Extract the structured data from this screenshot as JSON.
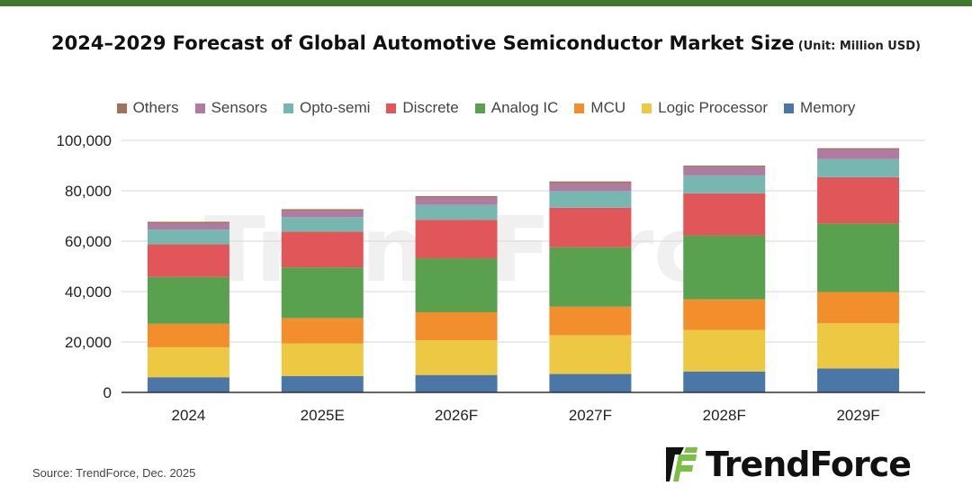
{
  "header": {
    "title": "2024–2029 Forecast of Global Automotive Semiconductor Market Size",
    "unit": "(Unit: Million USD)"
  },
  "footer": {
    "source": "Source: TrendForce, Dec.  2025",
    "logo_text": "TrendForce",
    "watermark_text": "TrendForce"
  },
  "colors": {
    "accent_bar": "#3f7a2c",
    "logo_green": "#7ac143"
  },
  "chart_data": {
    "type": "bar",
    "stacked": true,
    "title": "2024–2029 Forecast of Global Automotive Semiconductor Market Size",
    "categories": [
      "2024",
      "2025E",
      "2026F",
      "2027F",
      "2028F",
      "2029F"
    ],
    "ylim": [
      0,
      100000
    ],
    "yticks": [
      0,
      20000,
      40000,
      60000,
      80000,
      100000
    ],
    "ytick_labels": [
      "0",
      "20,000",
      "40,000",
      "60,000",
      "80,000",
      "100,000"
    ],
    "grid": true,
    "legend_placement": "top",
    "legend_order": [
      "Others",
      "Sensors",
      "Opto-semi",
      "Discrete",
      "Analog IC",
      "MCU",
      "Logic Processor",
      "Memory"
    ],
    "series": [
      {
        "name": "Memory",
        "color": "#4a76a8",
        "values": [
          6000,
          6500,
          6900,
          7300,
          8300,
          9500
        ]
      },
      {
        "name": "Logic Processor",
        "color": "#ecc843",
        "values": [
          11900,
          12900,
          13800,
          15400,
          16500,
          17900
        ]
      },
      {
        "name": "MCU",
        "color": "#f28e2b",
        "values": [
          9300,
          10100,
          11100,
          11300,
          12100,
          12400
        ]
      },
      {
        "name": "Analog IC",
        "color": "#59a14f",
        "values": [
          18600,
          20100,
          21400,
          23600,
          25400,
          27200
        ]
      },
      {
        "name": "Discrete",
        "color": "#e15759",
        "values": [
          13000,
          14200,
          15300,
          15700,
          16700,
          18400
        ]
      },
      {
        "name": "Opto-semi",
        "color": "#76b7b2",
        "values": [
          5800,
          5800,
          5900,
          6600,
          7100,
          7200
        ]
      },
      {
        "name": "Sensors",
        "color": "#b07aa1",
        "values": [
          2400,
          2500,
          2900,
          3000,
          3300,
          3700
        ]
      },
      {
        "name": "Others",
        "color": "#9c755f",
        "values": [
          700,
          600,
          600,
          800,
          600,
          600
        ]
      }
    ]
  }
}
